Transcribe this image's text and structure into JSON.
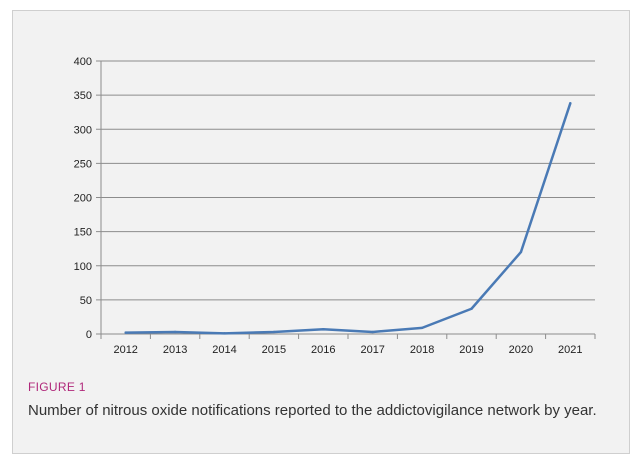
{
  "figure": {
    "label": "FIGURE 1",
    "caption": "Number of nitrous oxide notifications reported to the addictovigilance network by year."
  },
  "colors": {
    "line": "#4a7ab5",
    "grid": "#8c8c8c",
    "label_accent": "#b0287a",
    "panel_background": "#f2f2f2"
  },
  "chart_data": {
    "type": "line",
    "categories": [
      "2012",
      "2013",
      "2014",
      "2015",
      "2016",
      "2017",
      "2018",
      "2019",
      "2020",
      "2021"
    ],
    "series": [
      {
        "values": [
          2,
          3,
          1,
          3,
          7,
          3,
          9,
          37,
          120,
          338
        ]
      }
    ],
    "yticks": [
      0,
      50,
      100,
      150,
      200,
      250,
      300,
      350,
      400
    ],
    "ylim": [
      0,
      400
    ],
    "grid": true,
    "legend": "none",
    "title": "",
    "xlabel": "",
    "ylabel": ""
  }
}
